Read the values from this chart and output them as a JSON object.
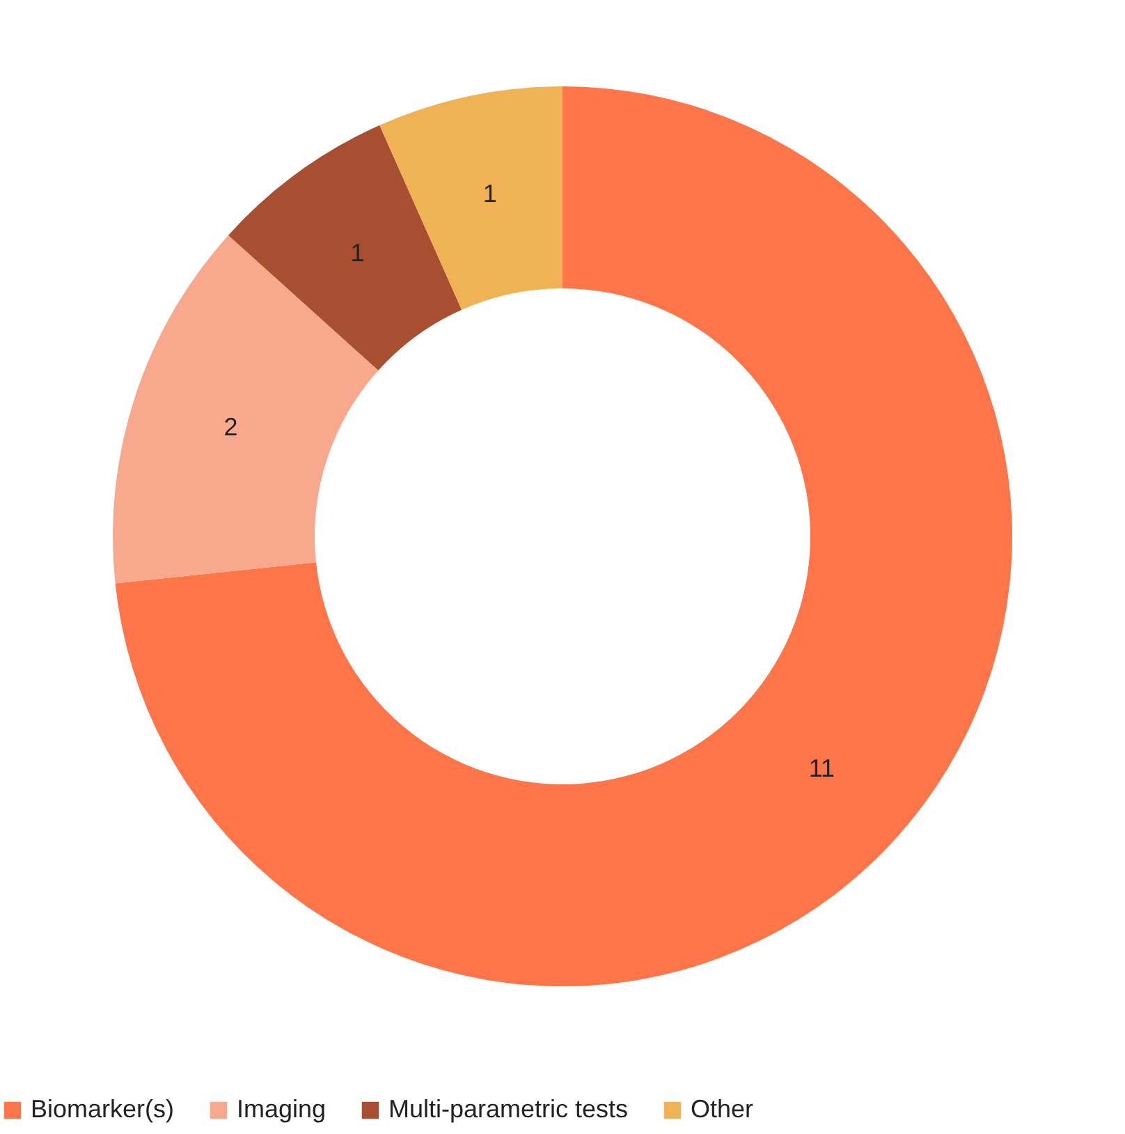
{
  "chart_data": {
    "type": "donut",
    "categories": [
      "Biomarker(s)",
      "Imaging",
      "Multi-parametric tests",
      "Other"
    ],
    "values": [
      11,
      2,
      1,
      1
    ],
    "colors": [
      "#fe754a",
      "#f8a88c",
      "#a84f31",
      "#efb356"
    ],
    "data_labels": true,
    "legend": "bottom"
  }
}
